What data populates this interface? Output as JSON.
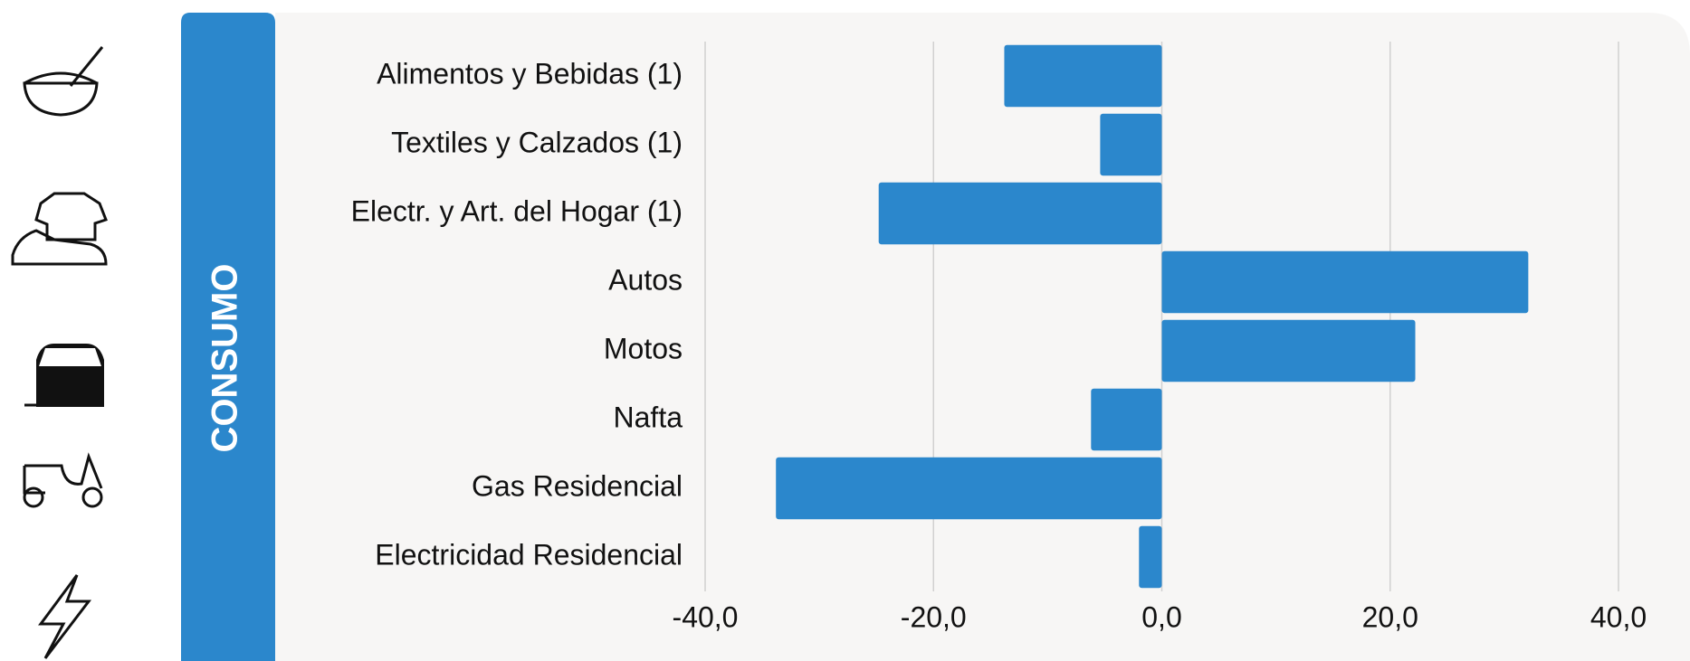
{
  "section_label": "CONSUMO",
  "chart_data": {
    "type": "barh",
    "categories": [
      "Alimentos y Bebidas (1)",
      "Textiles y Calzados (1)",
      "Electr. y Art. del Hogar (1)",
      "Autos",
      "Motos",
      "Nafta",
      "Gas Residencial",
      "Electricidad Residencial"
    ],
    "values": [
      -13.8,
      -5.4,
      -24.8,
      32.1,
      22.2,
      -6.2,
      -33.8,
      -2.0
    ],
    "color": "#2b87cc",
    "xlim": [
      -40,
      40
    ],
    "xticks": [
      {
        "value": -40,
        "label": "-40,0"
      },
      {
        "value": -20,
        "label": "-20,0"
      },
      {
        "value": 0,
        "label": "0,0"
      },
      {
        "value": 20,
        "label": "20,0"
      },
      {
        "value": 40,
        "label": "40,0"
      }
    ],
    "grid": true
  }
}
